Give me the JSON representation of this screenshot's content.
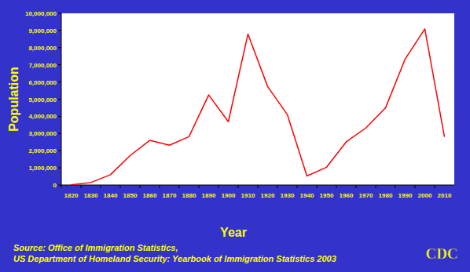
{
  "chart_data": {
    "type": "line",
    "x_label": "Year",
    "y_label": "Population",
    "source": [
      "Source: Office of Immigration Statistics,",
      "US Department of Homeland Security: Yearbook of Immigration Statistics 2003"
    ],
    "logo": "CDC",
    "categories": [
      "1820",
      "1830",
      "1840",
      "1850",
      "1860",
      "1870",
      "1880",
      "1890",
      "1900",
      "1910",
      "1920",
      "1930",
      "1940",
      "1950",
      "1960",
      "1970",
      "1980",
      "1990",
      "2000",
      "2010"
    ],
    "values": [
      8000,
      143000,
      599000,
      1713000,
      2598000,
      2315000,
      2812000,
      5247000,
      3688000,
      8795000,
      5736000,
      4107000,
      528000,
      1035000,
      2515000,
      3322000,
      4493000,
      7338000,
      9095000,
      2800000
    ],
    "color": "#ff0000",
    "ylim": [
      0,
      10000000
    ],
    "yticks": [
      0,
      {
        "value": 1000000,
        "label": "1,000,000"
      },
      {
        "value": 2000000,
        "label": "2,000,000"
      },
      {
        "value": 3000000,
        "label": "3,000,000"
      },
      {
        "value": 4000000,
        "label": "4,000,000"
      },
      {
        "value": 5000000,
        "label": "5,000,000"
      },
      {
        "value": 6000000,
        "label": "6,000,000"
      },
      {
        "value": 7000000,
        "label": "7,000,000"
      },
      {
        "value": 8000000,
        "label": "8,000,000"
      },
      {
        "value": 9000000,
        "label": "9,000,000"
      },
      {
        "value": 10000000,
        "label": "10,000,000"
      }
    ],
    "grid": false
  }
}
